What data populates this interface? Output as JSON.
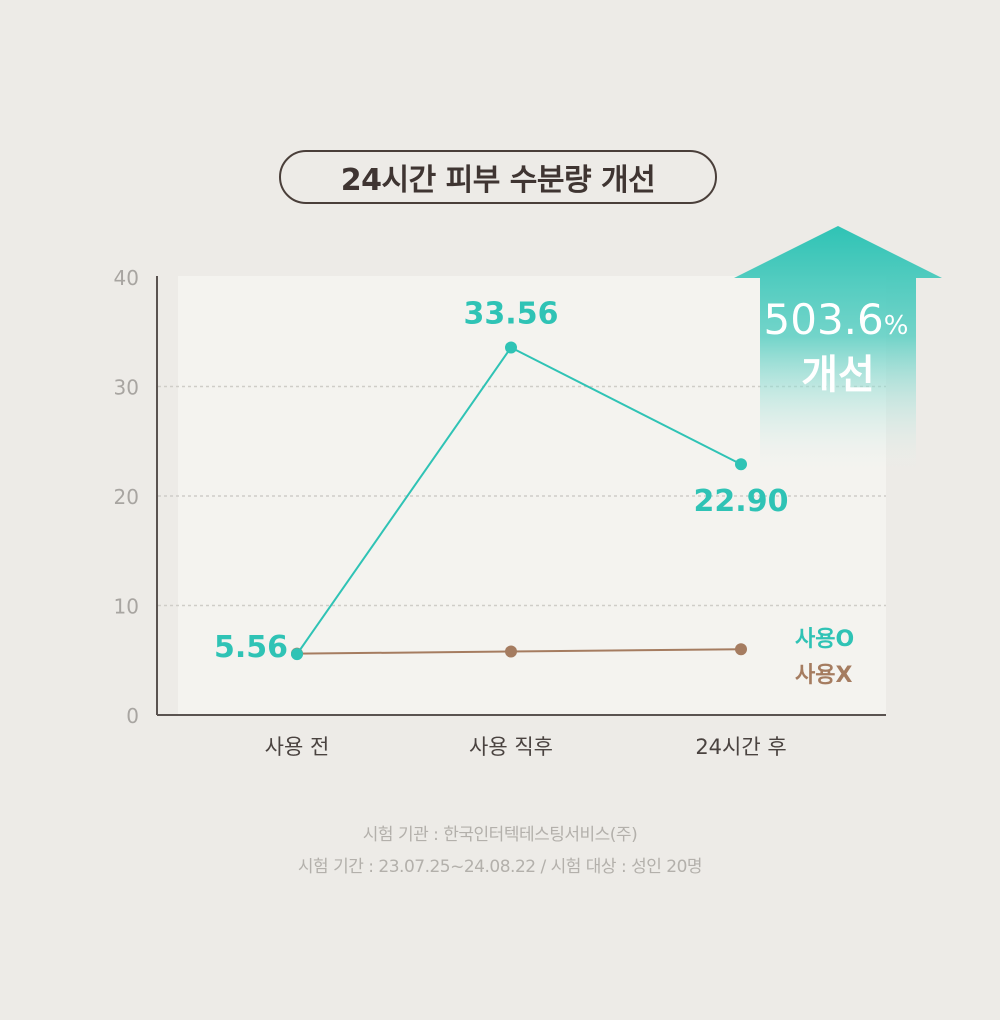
{
  "title": "24시간 피부 수분량 개선",
  "improvement": {
    "value": "503.6",
    "unit": "%",
    "label": "개선"
  },
  "footnotes": {
    "line1": "시험 기관 : 한국인터텍테스팅서비스(주)",
    "line2": "시험 기간 : 23.07.25~24.08.22 / 시험 대상 : 성인 20명"
  },
  "colors": {
    "teal": "#2fc3b5",
    "brown": "#a57c60",
    "axis": "#5a5350",
    "tick": "#a8a5a1",
    "grid": "#cfcdc8",
    "plot_bg": "#f4f3ef"
  },
  "chart_data": {
    "type": "line",
    "categories": [
      "사용 전",
      "사용 직후",
      "24시간 후"
    ],
    "ylim": [
      0,
      40
    ],
    "yticks": [
      0,
      10,
      20,
      30,
      40
    ],
    "grid": true,
    "legend_position": "right",
    "series": [
      {
        "name": "사용O",
        "color": "#2fc3b5",
        "values": [
          5.56,
          33.56,
          22.9
        ],
        "labels": [
          "5.56",
          "33.56",
          "22.90"
        ]
      },
      {
        "name": "사용X",
        "color": "#a57c60",
        "values": [
          5.6,
          5.8,
          6.0
        ]
      }
    ]
  }
}
